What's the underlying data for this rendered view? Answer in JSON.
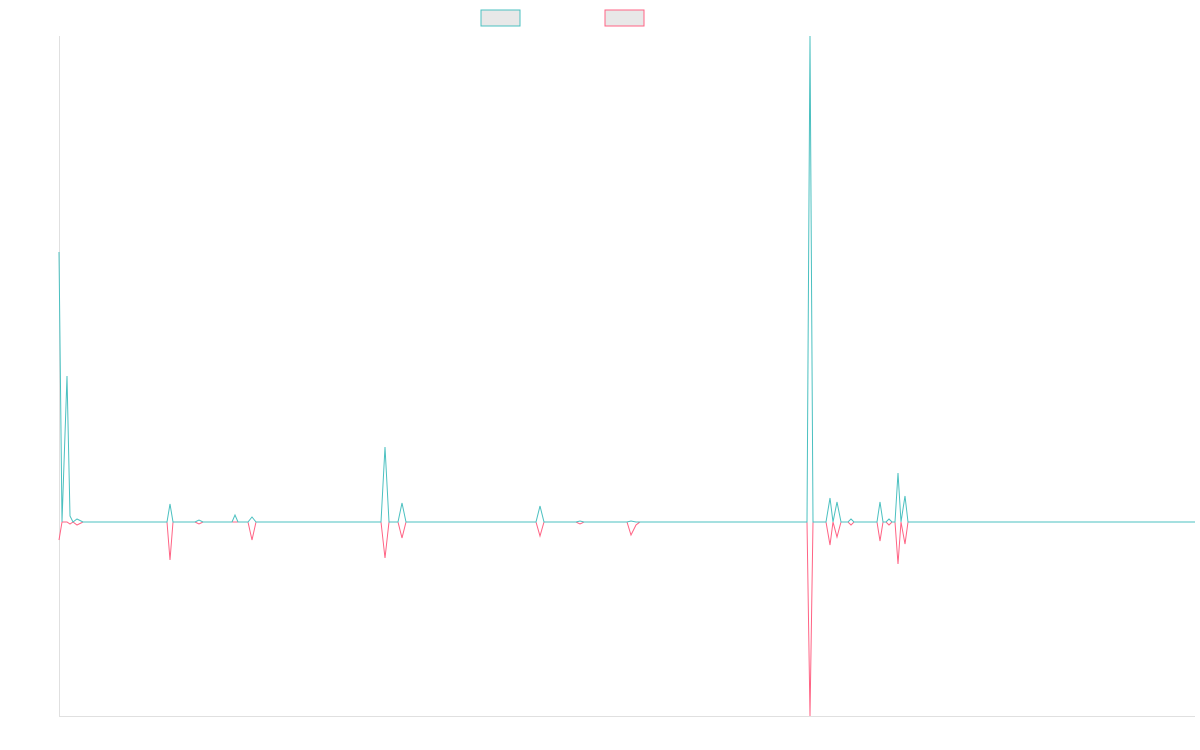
{
  "chart_data": {
    "type": "line",
    "x": [
      0,
      3,
      8,
      11,
      14,
      18,
      24,
      108,
      111,
      114,
      136,
      140,
      144,
      173,
      176,
      179,
      189,
      193,
      197,
      322,
      326,
      330,
      339,
      343,
      347,
      477,
      481,
      485,
      517,
      521,
      525,
      568,
      572,
      577,
      581,
      748,
      751,
      754,
      767,
      771,
      774,
      778,
      782,
      789,
      792,
      795,
      818,
      821,
      824,
      827,
      830,
      833,
      836,
      839,
      842,
      846,
      849,
      1136
    ],
    "xlim": [
      0,
      1136
    ],
    "ylim": [
      -194,
      486
    ],
    "series": [
      {
        "color": "#4bc0c0",
        "values": [
          270,
          0,
          146,
          6,
          0,
          3,
          0,
          0,
          18,
          0,
          0,
          2,
          0,
          0,
          7,
          0,
          0,
          5,
          0,
          0,
          75,
          0,
          0,
          19,
          0,
          0,
          16,
          0,
          0,
          1,
          0,
          0,
          1,
          0,
          0,
          0,
          486,
          0,
          0,
          24,
          0,
          20,
          0,
          0,
          3,
          0,
          0,
          20,
          0,
          0,
          3,
          0,
          0,
          49,
          0,
          26,
          0,
          0
        ]
      },
      {
        "color": "#ff6384",
        "values": [
          -18,
          0,
          0,
          -2,
          0,
          -3,
          0,
          0,
          -38,
          0,
          0,
          -2,
          0,
          0,
          0,
          0,
          0,
          -18,
          0,
          0,
          -36,
          0,
          0,
          -16,
          0,
          0,
          -14,
          0,
          0,
          -2,
          0,
          0,
          -13,
          -3,
          0,
          0,
          -194,
          0,
          0,
          -23,
          0,
          -15,
          0,
          0,
          -3,
          0,
          0,
          -19,
          0,
          0,
          -3,
          0,
          0,
          -42,
          0,
          -22,
          0,
          0
        ]
      }
    ]
  }
}
